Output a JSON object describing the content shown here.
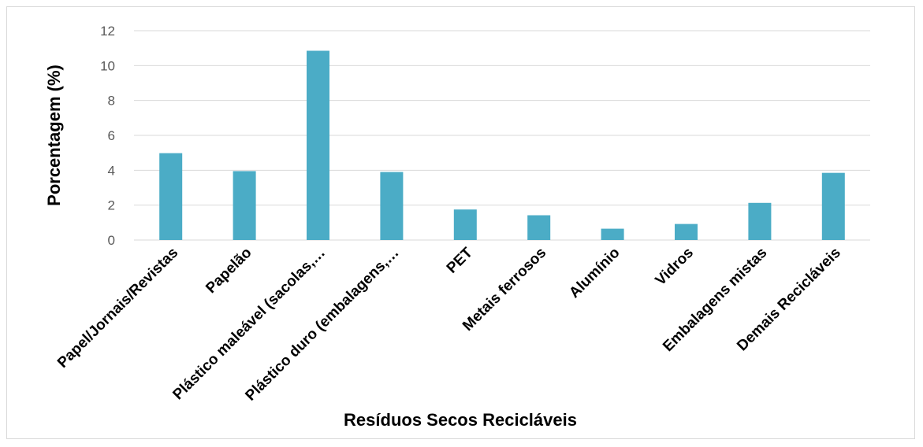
{
  "chart_data": {
    "type": "bar",
    "categories": [
      "Papel/Jornais/Revistas",
      "Papelão",
      "Plástico maleável (sacolas,…",
      "Plástico duro (embalagens,…",
      "PET",
      "Metais ferrosos",
      "Alumínio",
      "Vidros",
      "Embalagens mistas",
      "Demais Recicláveis"
    ],
    "values": [
      4.98,
      3.95,
      10.85,
      3.9,
      1.75,
      1.42,
      0.65,
      0.92,
      2.13,
      3.85
    ],
    "xlabel": "Resíduos Secos Recicláveis",
    "ylabel": "Porcentagem (%)",
    "ylim": [
      0,
      12
    ],
    "yticks": [
      "0",
      "2",
      "4",
      "6",
      "8",
      "10",
      "12"
    ],
    "bar_color": "#4bacc6",
    "grid": true
  }
}
